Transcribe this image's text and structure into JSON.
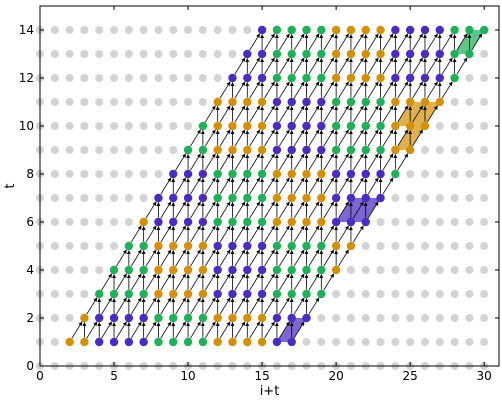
{
  "chart_data": {
    "type": "scatter",
    "title": "",
    "xlabel": "i+t",
    "ylabel": "t",
    "xlim": [
      0,
      31
    ],
    "ylim": [
      0,
      15
    ],
    "xticks": [
      0,
      5,
      10,
      15,
      20,
      25,
      30
    ],
    "yticks": [
      0,
      2,
      4,
      6,
      8,
      10,
      12,
      14
    ],
    "grid": false,
    "colors": {
      "orange": "#d4900a",
      "purple": "#4b2bc0",
      "green": "#21b05a",
      "background_points": "#d3d3d3",
      "arrow": "#000000"
    },
    "background_points": "integer lattice points (x = 0..30, y = 0..14) in light gray",
    "rows": [
      {
        "t": 1,
        "segments": [
          {
            "start": 2,
            "end": 3,
            "color": "orange"
          },
          {
            "start": 4,
            "end": 7,
            "color": "purple"
          },
          {
            "start": 8,
            "end": 11,
            "color": "green"
          },
          {
            "start": 12,
            "end": 15,
            "color": "orange"
          },
          {
            "start": 16,
            "end": 17,
            "color": "purple"
          }
        ]
      },
      {
        "t": 2,
        "segments": [
          {
            "start": 3,
            "end": 3,
            "color": "orange"
          },
          {
            "start": 4,
            "end": 7,
            "color": "purple"
          },
          {
            "start": 8,
            "end": 11,
            "color": "green"
          },
          {
            "start": 12,
            "end": 15,
            "color": "orange"
          },
          {
            "start": 16,
            "end": 18,
            "color": "purple"
          }
        ]
      },
      {
        "t": 3,
        "segments": [
          {
            "start": 4,
            "end": 7,
            "color": "green"
          },
          {
            "start": 8,
            "end": 11,
            "color": "orange"
          },
          {
            "start": 12,
            "end": 15,
            "color": "purple"
          },
          {
            "start": 16,
            "end": 19,
            "color": "green"
          }
        ]
      },
      {
        "t": 4,
        "segments": [
          {
            "start": 5,
            "end": 7,
            "color": "green"
          },
          {
            "start": 8,
            "end": 11,
            "color": "orange"
          },
          {
            "start": 12,
            "end": 15,
            "color": "purple"
          },
          {
            "start": 16,
            "end": 19,
            "color": "green"
          },
          {
            "start": 20,
            "end": 20,
            "color": "orange"
          }
        ]
      },
      {
        "t": 5,
        "segments": [
          {
            "start": 6,
            "end": 7,
            "color": "green"
          },
          {
            "start": 8,
            "end": 11,
            "color": "orange"
          },
          {
            "start": 12,
            "end": 15,
            "color": "purple"
          },
          {
            "start": 16,
            "end": 19,
            "color": "green"
          },
          {
            "start": 20,
            "end": 21,
            "color": "orange"
          }
        ]
      },
      {
        "t": 6,
        "segments": [
          {
            "start": 7,
            "end": 7,
            "color": "orange"
          },
          {
            "start": 8,
            "end": 11,
            "color": "purple"
          },
          {
            "start": 12,
            "end": 15,
            "color": "green"
          },
          {
            "start": 16,
            "end": 19,
            "color": "orange"
          },
          {
            "start": 20,
            "end": 22,
            "color": "purple"
          }
        ]
      },
      {
        "t": 7,
        "segments": [
          {
            "start": 8,
            "end": 11,
            "color": "purple"
          },
          {
            "start": 12,
            "end": 15,
            "color": "green"
          },
          {
            "start": 16,
            "end": 19,
            "color": "orange"
          },
          {
            "start": 20,
            "end": 23,
            "color": "purple"
          }
        ]
      },
      {
        "t": 8,
        "segments": [
          {
            "start": 9,
            "end": 11,
            "color": "purple"
          },
          {
            "start": 12,
            "end": 15,
            "color": "green"
          },
          {
            "start": 16,
            "end": 19,
            "color": "orange"
          },
          {
            "start": 20,
            "end": 23,
            "color": "purple"
          },
          {
            "start": 24,
            "end": 24,
            "color": "green"
          }
        ]
      },
      {
        "t": 9,
        "segments": [
          {
            "start": 10,
            "end": 11,
            "color": "green"
          },
          {
            "start": 12,
            "end": 15,
            "color": "orange"
          },
          {
            "start": 16,
            "end": 19,
            "color": "purple"
          },
          {
            "start": 20,
            "end": 23,
            "color": "green"
          },
          {
            "start": 24,
            "end": 25,
            "color": "orange"
          }
        ]
      },
      {
        "t": 10,
        "segments": [
          {
            "start": 11,
            "end": 11,
            "color": "green"
          },
          {
            "start": 12,
            "end": 15,
            "color": "orange"
          },
          {
            "start": 16,
            "end": 19,
            "color": "purple"
          },
          {
            "start": 20,
            "end": 23,
            "color": "green"
          },
          {
            "start": 24,
            "end": 26,
            "color": "orange"
          }
        ]
      },
      {
        "t": 11,
        "segments": [
          {
            "start": 12,
            "end": 15,
            "color": "orange"
          },
          {
            "start": 16,
            "end": 19,
            "color": "purple"
          },
          {
            "start": 20,
            "end": 23,
            "color": "green"
          },
          {
            "start": 24,
            "end": 27,
            "color": "orange"
          }
        ]
      },
      {
        "t": 12,
        "segments": [
          {
            "start": 13,
            "end": 15,
            "color": "purple"
          },
          {
            "start": 16,
            "end": 19,
            "color": "green"
          },
          {
            "start": 20,
            "end": 23,
            "color": "orange"
          },
          {
            "start": 24,
            "end": 27,
            "color": "purple"
          },
          {
            "start": 28,
            "end": 28,
            "color": "green"
          }
        ]
      },
      {
        "t": 13,
        "segments": [
          {
            "start": 14,
            "end": 15,
            "color": "purple"
          },
          {
            "start": 16,
            "end": 19,
            "color": "green"
          },
          {
            "start": 20,
            "end": 23,
            "color": "orange"
          },
          {
            "start": 24,
            "end": 27,
            "color": "purple"
          },
          {
            "start": 28,
            "end": 29,
            "color": "green"
          }
        ]
      },
      {
        "t": 14,
        "segments": [
          {
            "start": 15,
            "end": 15,
            "color": "purple"
          },
          {
            "start": 16,
            "end": 19,
            "color": "green"
          },
          {
            "start": 20,
            "end": 23,
            "color": "orange"
          },
          {
            "start": 24,
            "end": 27,
            "color": "purple"
          },
          {
            "start": 28,
            "end": 30,
            "color": "green"
          }
        ]
      }
    ],
    "arrows": "each colored point at (x, t) has an arrow to (x+1, t+1) and (x, t+1) within the colored region"
  }
}
